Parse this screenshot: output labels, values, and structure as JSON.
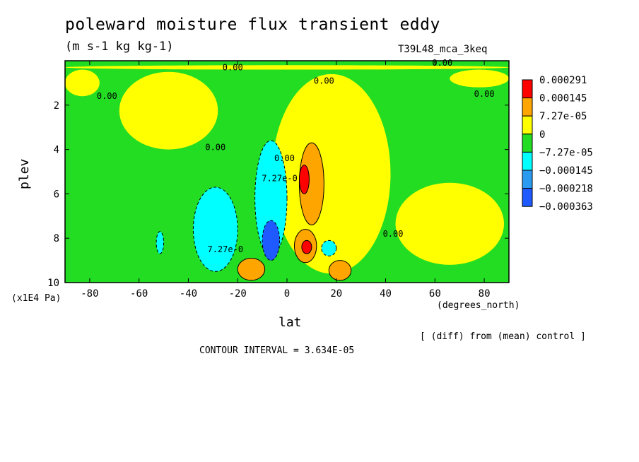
{
  "chart_data": {
    "type": "heatmap",
    "title": "poleward moisture flux transient eddy",
    "units": "(m s-1 kg kg-1)",
    "run_label": "T39L48_mca_3keq",
    "xlabel": "lat",
    "xunit": "(degrees_north)",
    "ylabel": "plev",
    "yunit": "(x1E4 Pa)",
    "xlim": [
      -90,
      90
    ],
    "ylim": [
      0,
      10
    ],
    "y_inverted": true,
    "x_ticks": [
      -80,
      -60,
      -40,
      -20,
      0,
      20,
      40,
      60,
      80
    ],
    "x_tick_labels": [
      "-80",
      "-60",
      "-40",
      "-20",
      "0",
      "20",
      "40",
      "60",
      "80"
    ],
    "y_ticks": [
      2,
      4,
      6,
      8,
      10
    ],
    "y_tick_labels": [
      "2",
      "4",
      "6",
      "8",
      "10"
    ],
    "contour_interval_text": "CONTOUR INTERVAL = 3.634E-05",
    "comparison_note": "[ (diff) from (mean) control ]",
    "legend_position": "right",
    "legend": [
      {
        "label": "0.000291",
        "color": "#ff0000"
      },
      {
        "label": "0.000145",
        "color": "#ffa500"
      },
      {
        "label": "7.27e-05",
        "color": "#ffff00"
      },
      {
        "label": "0",
        "color": "#22dd22"
      },
      {
        "label": "−7.27e-05",
        "color": "#00ffff"
      },
      {
        "label": "−0.000145",
        "color": "#2a9bf0"
      },
      {
        "label": "−0.000218",
        "color": "#1e5aff"
      },
      {
        "label": "−0.000363",
        "color": "#1e5aff"
      }
    ],
    "regions": [
      {
        "level": "yellow",
        "color": "#ffff00",
        "lat": [
          -90,
          90
        ],
        "plev": [
          0.2,
          0.4
        ]
      },
      {
        "level": "yellow",
        "color": "#ffff00",
        "lat": [
          -90,
          -76
        ],
        "plev": [
          0.4,
          1.6
        ]
      },
      {
        "level": "yellow",
        "color": "#ffff00",
        "lat": [
          -68,
          -28
        ],
        "plev": [
          0.5,
          4.0
        ]
      },
      {
        "level": "yellow",
        "color": "#ffff00",
        "lat": [
          -6,
          42
        ],
        "plev": [
          0.6,
          9.6
        ]
      },
      {
        "level": "yellow",
        "color": "#ffff00",
        "lat": [
          44,
          88
        ],
        "plev": [
          5.5,
          9.2
        ]
      },
      {
        "level": "yellow",
        "color": "#ffff00",
        "lat": [
          66,
          90
        ],
        "plev": [
          0.4,
          1.2
        ]
      },
      {
        "level": "cyan",
        "color": "#00ffff",
        "lat": [
          -38,
          -20
        ],
        "plev": [
          5.7,
          9.5
        ]
      },
      {
        "level": "cyan",
        "color": "#00ffff",
        "lat": [
          -13,
          0
        ],
        "plev": [
          3.6,
          8.8
        ]
      },
      {
        "level": "cyan",
        "color": "#00ffff",
        "lat": [
          -53,
          -50
        ],
        "plev": [
          7.7,
          8.7
        ]
      },
      {
        "level": "cyan",
        "color": "#00ffff",
        "lat": [
          14,
          20
        ],
        "plev": [
          8.1,
          8.8
        ]
      },
      {
        "level": "blue",
        "color": "#1e5aff",
        "lat": [
          -10,
          -3
        ],
        "plev": [
          7.2,
          9.0
        ]
      },
      {
        "level": "orange",
        "color": "#ffa500",
        "lat": [
          5,
          15
        ],
        "plev": [
          3.7,
          7.4
        ]
      },
      {
        "level": "orange",
        "color": "#ffa500",
        "lat": [
          3,
          12
        ],
        "plev": [
          7.6,
          9.1
        ]
      },
      {
        "level": "orange",
        "color": "#ffa500",
        "lat": [
          -20,
          -9
        ],
        "plev": [
          8.9,
          9.9
        ]
      },
      {
        "level": "orange",
        "color": "#ffa500",
        "lat": [
          17,
          26
        ],
        "plev": [
          9.0,
          9.9
        ]
      },
      {
        "level": "red",
        "color": "#ff0000",
        "lat": [
          5,
          9
        ],
        "plev": [
          4.7,
          6.0
        ]
      },
      {
        "level": "red",
        "color": "#ff0000",
        "lat": [
          6,
          10
        ],
        "plev": [
          8.1,
          8.7
        ]
      }
    ],
    "contour_labels": [
      {
        "text": "0.00",
        "lat": -22,
        "plev": 0.3
      },
      {
        "text": "0.00",
        "lat": 63,
        "plev": 0.1
      },
      {
        "text": "0.00",
        "lat": 15,
        "plev": 0.9
      },
      {
        "text": "0.00",
        "lat": -73,
        "plev": 1.6
      },
      {
        "text": "0.00",
        "lat": 80,
        "plev": 1.5
      },
      {
        "text": "0.00",
        "lat": -29,
        "plev": 3.9
      },
      {
        "text": "0.00",
        "lat": -1,
        "plev": 4.4
      },
      {
        "text": "0.00",
        "lat": 43,
        "plev": 7.8
      },
      {
        "text": "7.27e-0",
        "lat": -25,
        "plev": 8.5
      },
      {
        "text": "7.27e-0",
        "lat": -3,
        "plev": 5.3
      }
    ]
  }
}
